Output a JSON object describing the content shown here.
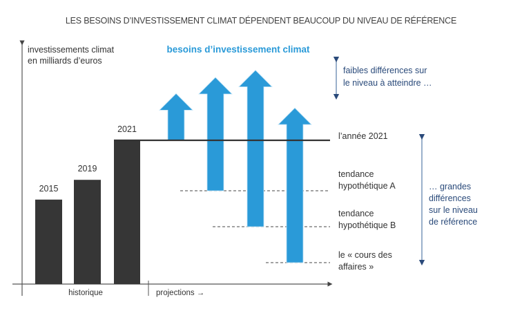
{
  "title": "LES BESOINS D’INVESTISSEMENT CLIMAT DÉPENDENT BEAUCOUP DU NIVEAU DE RÉFÉRENCE",
  "y_axis_label": [
    "investissements climat",
    "en milliards d’euros"
  ],
  "headline": "besoins d’investissement climat",
  "x_axis": {
    "historic_label": "historique",
    "projections_label": "projections →"
  },
  "historic_bars": [
    {
      "year": "2015",
      "level": 0.47
    },
    {
      "year": "2019",
      "level": 0.58
    },
    {
      "year": "2021",
      "level": 0.8
    }
  ],
  "reference_levels": [
    {
      "id": "annee-2021",
      "lines": [
        "l’année 2021"
      ],
      "level": 0.8,
      "style": "solid"
    },
    {
      "id": "tendance-a",
      "lines": [
        "tendance",
        "hypothétique A"
      ],
      "level": 0.52,
      "style": "dashed"
    },
    {
      "id": "tendance-b",
      "lines": [
        "tendance",
        "hypothétique B"
      ],
      "level": 0.32,
      "style": "dashed"
    },
    {
      "id": "cours-des-affaires",
      "lines": [
        "le « cours des",
        "affaires »"
      ],
      "level": 0.12,
      "style": "dashed"
    }
  ],
  "need_arrows": [
    {
      "base_ref": "annee-2021",
      "top_level": 1.06
    },
    {
      "base_ref": "tendance-a",
      "top_level": 1.15
    },
    {
      "base_ref": "tendance-b",
      "top_level": 1.19
    },
    {
      "base_ref": "cours-des-affaires",
      "top_level": 0.98
    }
  ],
  "annotations": {
    "small_differences": [
      "faibles différences sur",
      "le niveau à atteindre …"
    ],
    "large_differences": [
      "… grandes",
      "différences",
      "sur le niveau",
      "de référence"
    ]
  },
  "colors": {
    "bar": "#363636",
    "arrow": "#2a9ad8",
    "annotation_arrow": "#2a4a7a",
    "axis": "#555555"
  }
}
